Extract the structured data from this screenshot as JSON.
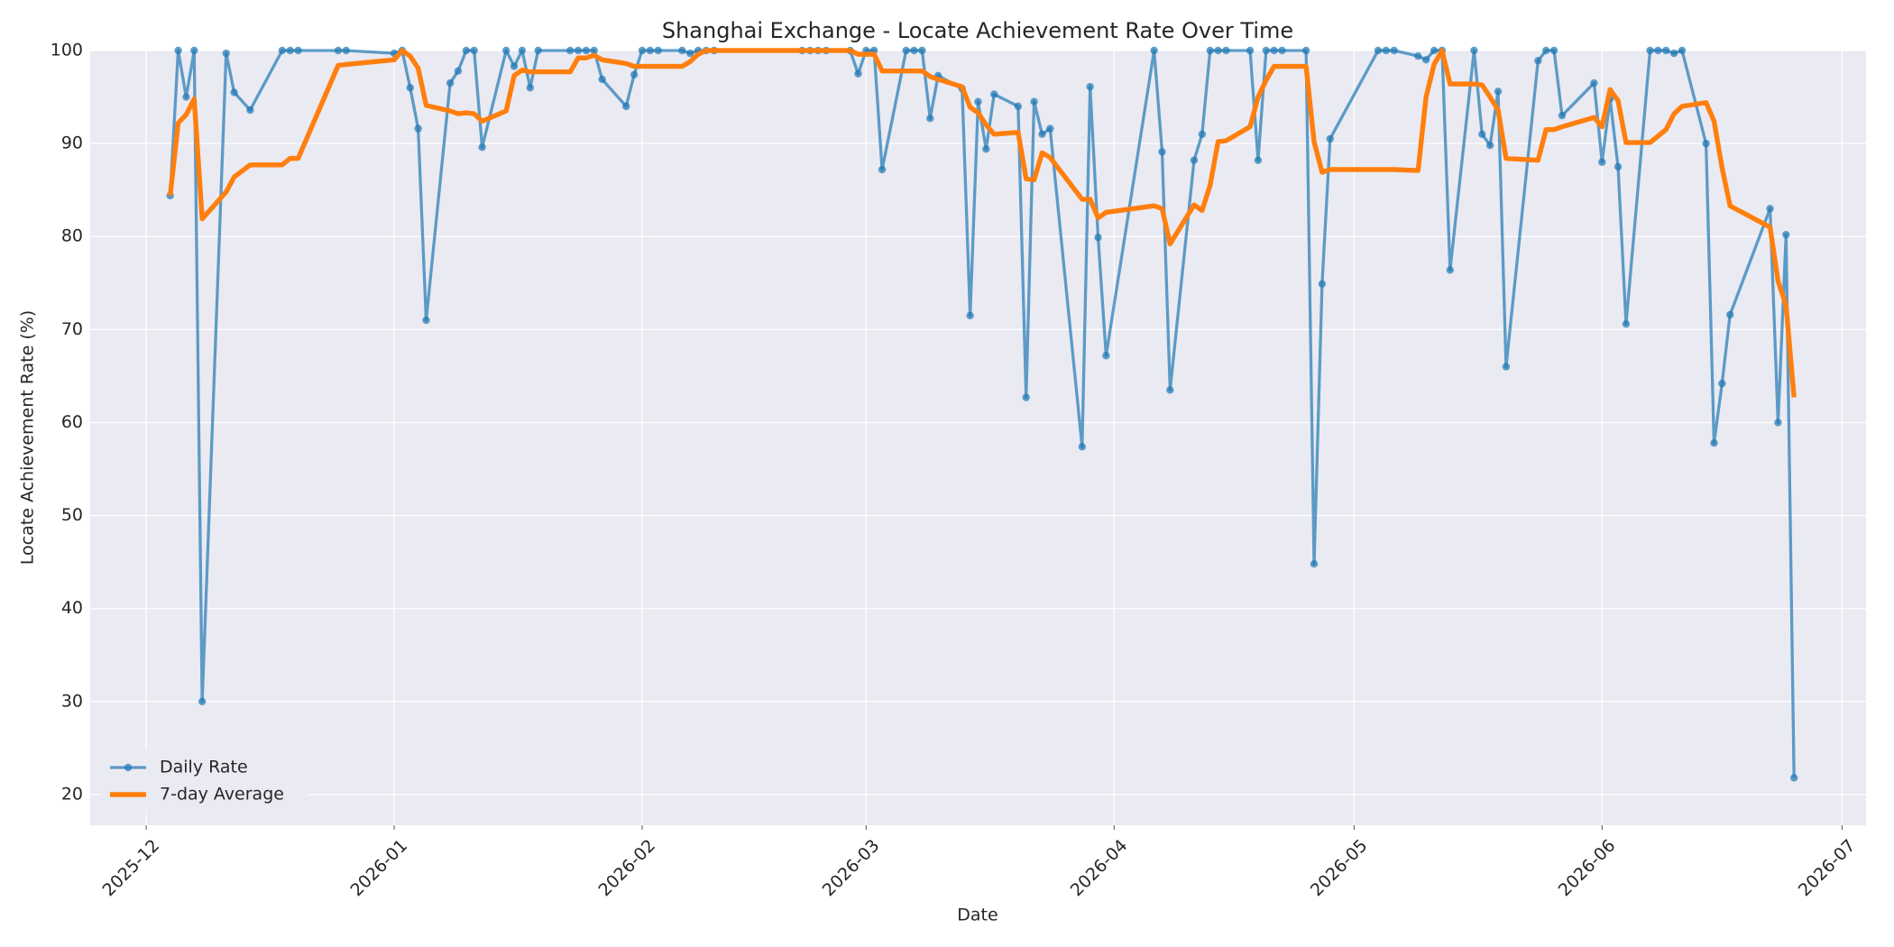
{
  "chart_data": {
    "type": "line",
    "title": "Shanghai Exchange - Locate Achievement Rate Over Time",
    "x_label": "Date",
    "y_label": "Locate Achievement Rate (%)",
    "x": [
      "2025-12-04",
      "2025-12-05",
      "2025-12-06",
      "2025-12-07",
      "2025-12-08",
      "2025-12-11",
      "2025-12-12",
      "2025-12-14",
      "2025-12-18",
      "2025-12-19",
      "2025-12-20",
      "2025-12-25",
      "2025-12-26",
      "2026-01-01",
      "2026-01-02",
      "2026-01-03",
      "2026-01-04",
      "2026-01-05",
      "2026-01-08",
      "2026-01-09",
      "2026-01-10",
      "2026-01-11",
      "2026-01-12",
      "2026-01-15",
      "2026-01-16",
      "2026-01-17",
      "2026-01-18",
      "2026-01-19",
      "2026-01-23",
      "2026-01-24",
      "2026-01-25",
      "2026-01-26",
      "2026-01-27",
      "2026-01-30",
      "2026-01-31",
      "2026-02-01",
      "2026-02-02",
      "2026-02-03",
      "2026-02-06",
      "2026-02-07",
      "2026-02-08",
      "2026-02-09",
      "2026-02-10",
      "2026-02-21",
      "2026-02-22",
      "2026-02-23",
      "2026-02-24",
      "2026-02-27",
      "2026-02-28",
      "2026-03-01",
      "2026-03-02",
      "2026-03-03",
      "2026-03-06",
      "2026-03-07",
      "2026-03-08",
      "2026-03-09",
      "2026-03-10",
      "2026-03-13",
      "2026-03-14",
      "2026-03-15",
      "2026-03-16",
      "2026-03-17",
      "2026-03-20",
      "2026-03-21",
      "2026-03-22",
      "2026-03-23",
      "2026-03-24",
      "2026-03-28",
      "2026-03-29",
      "2026-03-30",
      "2026-03-31",
      "2026-04-06",
      "2026-04-07",
      "2026-04-08",
      "2026-04-11",
      "2026-04-12",
      "2026-04-13",
      "2026-04-14",
      "2026-04-15",
      "2026-04-18",
      "2026-04-19",
      "2026-04-20",
      "2026-04-21",
      "2026-04-22",
      "2026-04-25",
      "2026-04-26",
      "2026-04-27",
      "2026-04-28",
      "2026-05-04",
      "2026-05-05",
      "2026-05-06",
      "2026-05-09",
      "2026-05-10",
      "2026-05-11",
      "2026-05-12",
      "2026-05-13",
      "2026-05-16",
      "2026-05-17",
      "2026-05-18",
      "2026-05-19",
      "2026-05-20",
      "2026-05-24",
      "2026-05-25",
      "2026-05-26",
      "2026-05-27",
      "2026-05-31",
      "2026-06-01",
      "2026-06-02",
      "2026-06-03",
      "2026-06-04",
      "2026-06-07",
      "2026-06-08",
      "2026-06-09",
      "2026-06-10",
      "2026-06-11",
      "2026-06-14",
      "2026-06-15",
      "2026-06-16",
      "2026-06-17",
      "2026-06-22",
      "2026-06-23",
      "2026-06-24",
      "2026-06-25"
    ],
    "series": [
      {
        "name": "Daily Rate",
        "color": "#1f77b4",
        "markers": true,
        "line_width": 3.3,
        "opacity": 0.7,
        "values": [
          84.4,
          100,
          95,
          100,
          30,
          99.7,
          95.5,
          93.6,
          100,
          100,
          100,
          100,
          100,
          99.7,
          100,
          96,
          91.6,
          71,
          96.5,
          97.8,
          100,
          100,
          89.6,
          100,
          98.3,
          100,
          96,
          100,
          100,
          100,
          100,
          100,
          96.9,
          94,
          97.4,
          100,
          100,
          100,
          100,
          99.7,
          100,
          100,
          100,
          100,
          100,
          100,
          100,
          100,
          97.5,
          100,
          100,
          87.2,
          100,
          100,
          100,
          92.7,
          97.3,
          95.9,
          71.5,
          94.5,
          89.4,
          95.3,
          94,
          62.7,
          94.5,
          91,
          91.6,
          57.4,
          96.1,
          79.9,
          67.2,
          100,
          89.1,
          63.5,
          88.2,
          91,
          100,
          100,
          100,
          100,
          88.2,
          100,
          100,
          100,
          100,
          44.8,
          74.9,
          90.5,
          100,
          100,
          100,
          99.4,
          99,
          100,
          100,
          76.4,
          100,
          91,
          89.8,
          95.6,
          66,
          98.9,
          100,
          100,
          93,
          96.5,
          88,
          94.8,
          87.5,
          70.6,
          100,
          100,
          100,
          99.7,
          100,
          90,
          57.8,
          64.2,
          71.6,
          83,
          60,
          80.2,
          21.8
        ]
      },
      {
        "name": "7-day Average",
        "color": "#ff7f0e",
        "markers": false,
        "line_width": 5.4,
        "opacity": 1,
        "values": [
          84.4,
          92.2,
          93.1,
          94.8,
          81.9,
          84.8,
          86.4,
          87.7,
          87.7,
          88.4,
          88.4,
          98.4,
          98.5,
          99,
          100,
          99.4,
          98.1,
          94.1,
          93.5,
          93.2,
          93.3,
          93.2,
          92.4,
          93.5,
          97.3,
          97.9,
          97.7,
          97.7,
          97.7,
          99.2,
          99.2,
          99.5,
          99,
          98.6,
          98.3,
          98.3,
          98.3,
          98.3,
          98.3,
          98.8,
          99.6,
          100,
          100,
          100,
          100,
          100,
          100,
          100,
          99.6,
          99.6,
          99.6,
          97.8,
          97.8,
          97.8,
          97.8,
          97.2,
          96.9,
          96.1,
          93.9,
          93.3,
          92,
          91,
          91.2,
          86.2,
          86.1,
          89,
          88.5,
          84,
          84,
          82,
          82.6,
          83.3,
          83,
          79.2,
          83.4,
          82.8,
          85.5,
          90.2,
          90.3,
          91.8,
          95,
          96.8,
          98.3,
          98.3,
          98.3,
          90.2,
          86.9,
          87.2,
          87.2,
          87.2,
          87.2,
          87.1,
          95,
          98.5,
          100,
          96.4,
          96.4,
          96.3,
          95,
          93.6,
          88.4,
          88.2,
          91.5,
          91.5,
          91.8,
          92.8,
          91.8,
          95.8,
          94.6,
          90.1,
          90.1,
          90.8,
          91.5,
          93.2,
          94,
          94.4,
          92.4,
          87.4,
          83.3,
          81,
          75.2,
          72.6,
          62.7
        ]
      }
    ],
    "xlim": [
      "2025-11-24",
      "2026-07-04"
    ],
    "xticks": [
      "2025-12",
      "2026-01",
      "2026-02",
      "2026-03",
      "2026-04",
      "2026-05",
      "2026-06",
      "2026-07"
    ],
    "ylim": [
      16.7,
      100
    ],
    "yticks": [
      20,
      30,
      40,
      50,
      60,
      70,
      80,
      90,
      100
    ],
    "grid": true,
    "legend": "lower left"
  }
}
